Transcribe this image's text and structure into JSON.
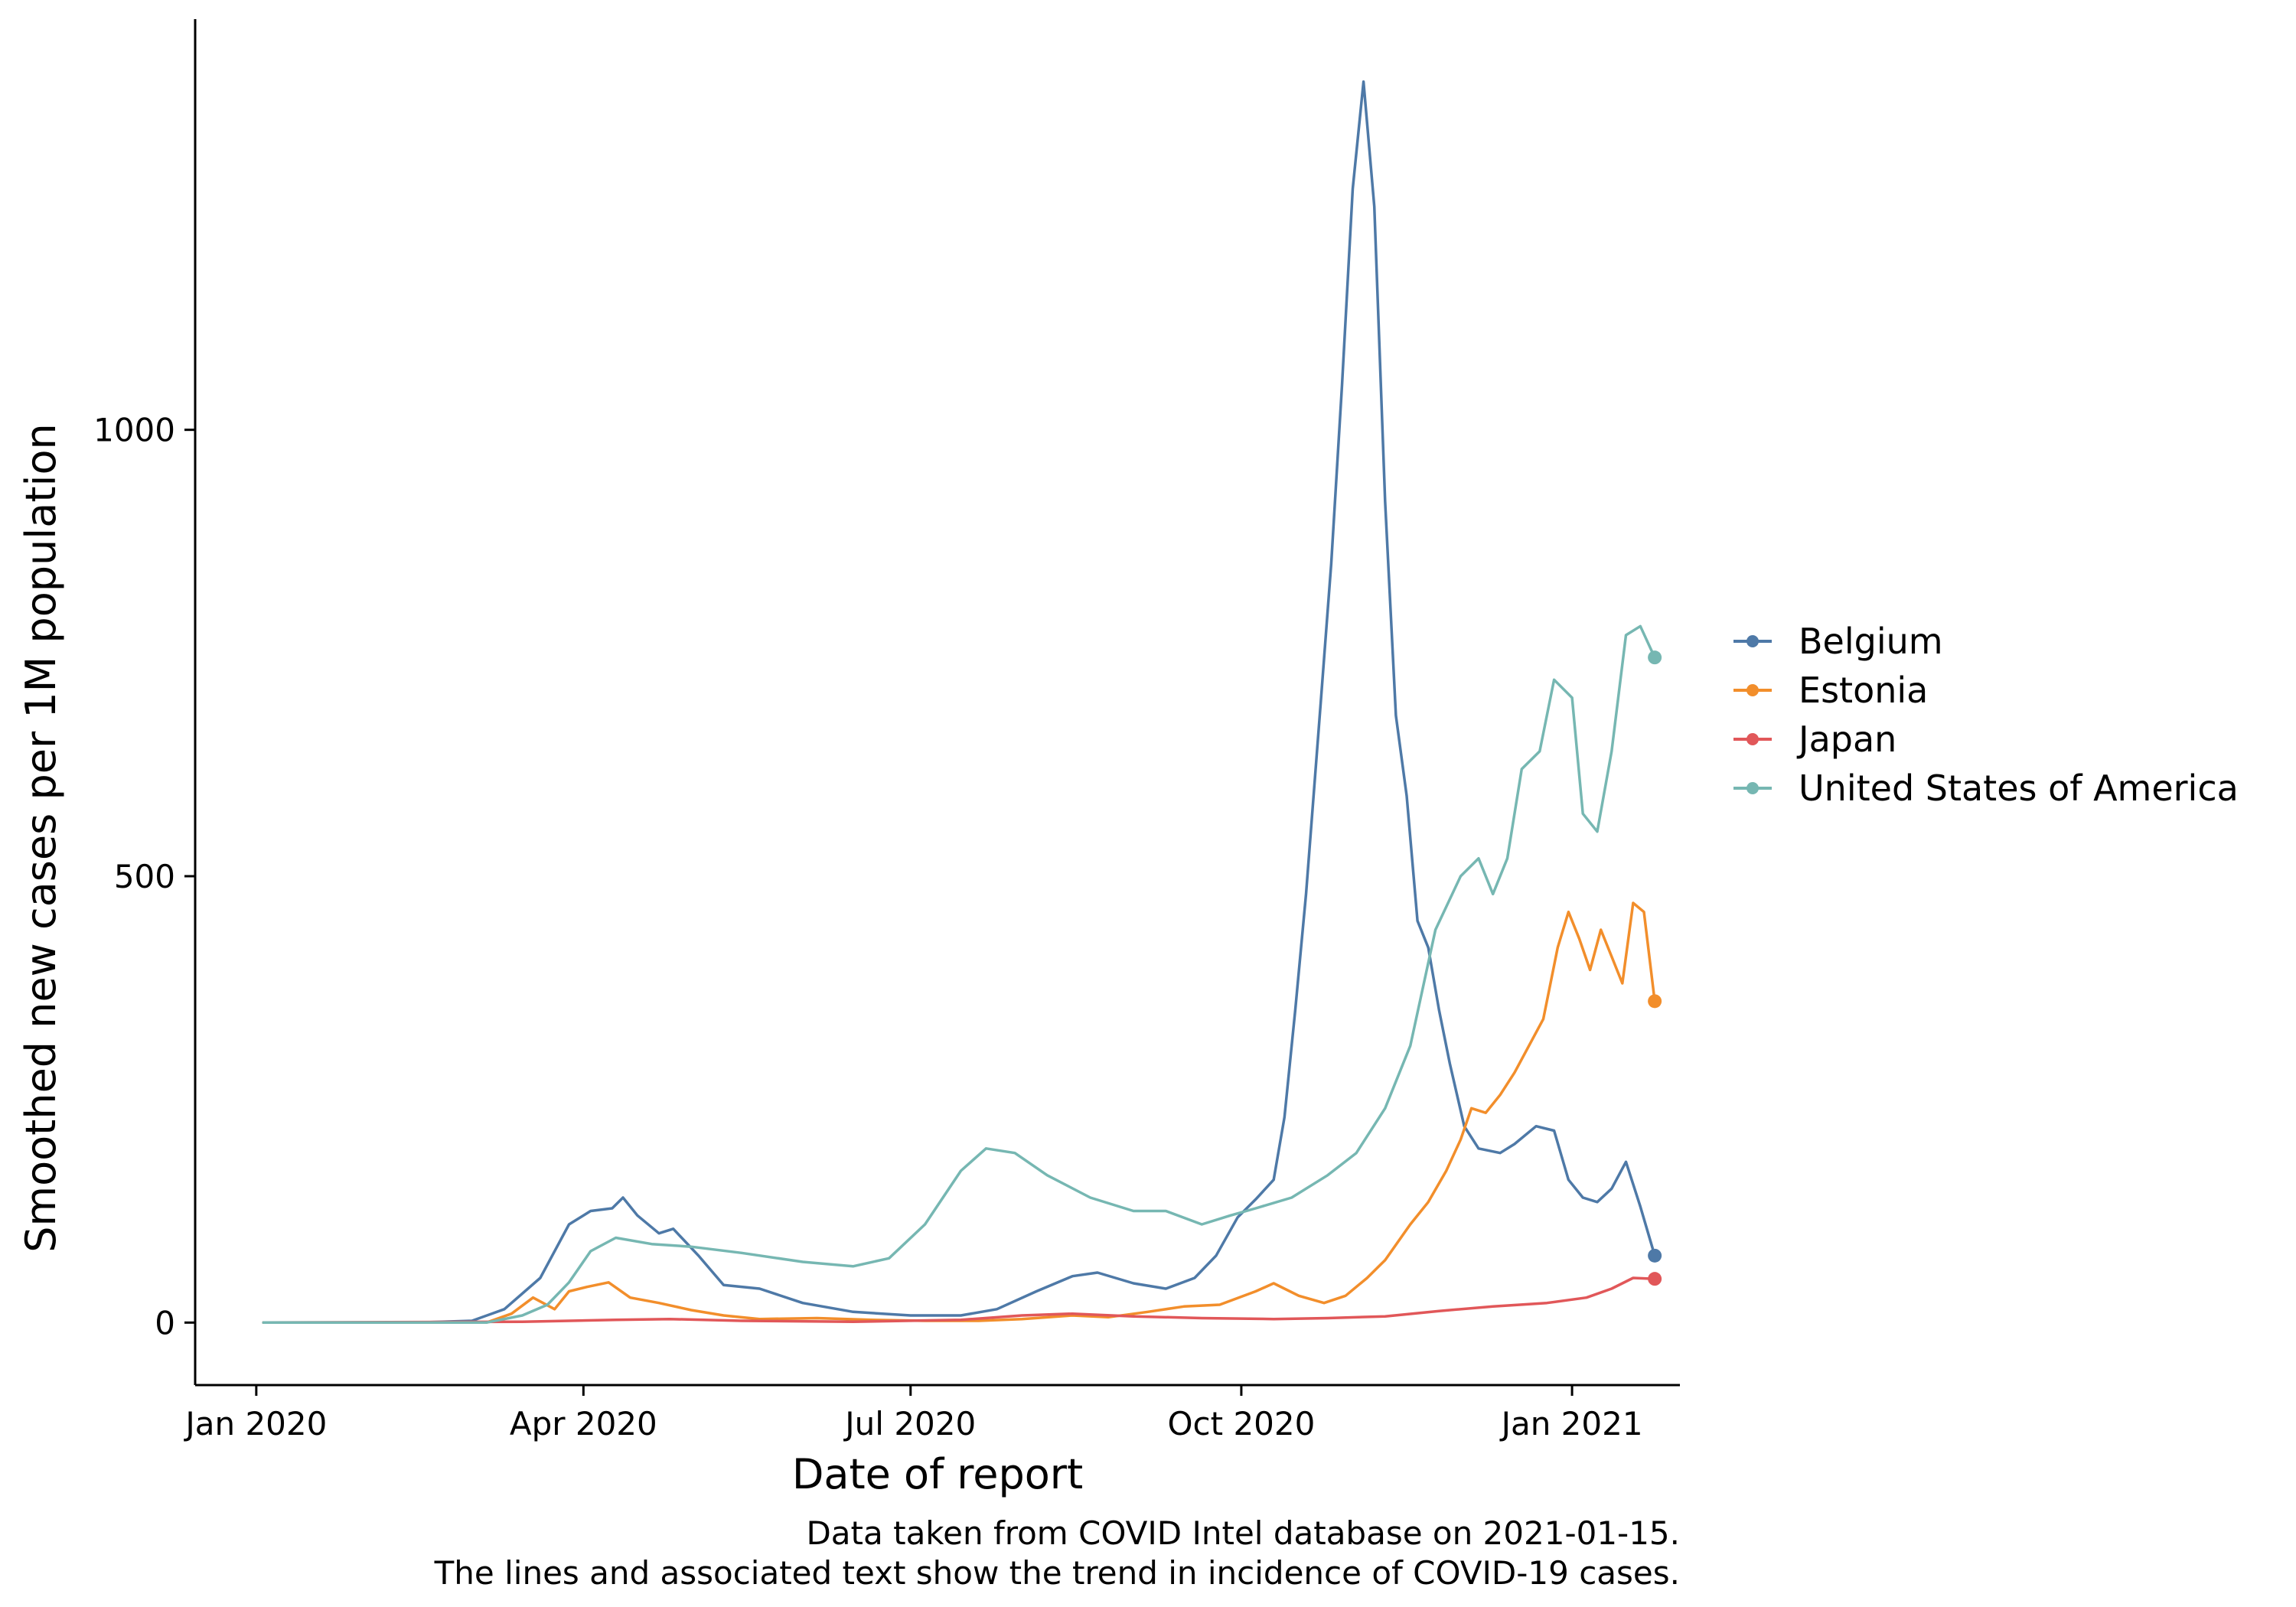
{
  "chart_data": {
    "type": "line",
    "xlabel": "Date of report",
    "ylabel": "Smoothed new cases per 1M population",
    "x_ticks": [
      {
        "date": "2020-01-01",
        "label": "Jan 2020"
      },
      {
        "date": "2020-04-01",
        "label": "Apr 2020"
      },
      {
        "date": "2020-07-01",
        "label": "Jul 2020"
      },
      {
        "date": "2020-10-01",
        "label": "Oct 2020"
      },
      {
        "date": "2021-01-01",
        "label": "Jan 2021"
      }
    ],
    "y_ticks": [
      0,
      500,
      1000
    ],
    "xlim": [
      "2019-12-15",
      "2021-01-31"
    ],
    "ylim": [
      -70,
      1460
    ],
    "legend_position": "right",
    "grid": false,
    "caption": [
      "Data taken from COVID Intel database on 2021-01-15.",
      "The lines and associated text show the trend in incidence of COVID-19 cases."
    ],
    "series": [
      {
        "name": "Belgium",
        "color": "#4e79a7",
        "points": [
          [
            "2020-01-03",
            0
          ],
          [
            "2020-02-15",
            0
          ],
          [
            "2020-03-01",
            2
          ],
          [
            "2020-03-10",
            15
          ],
          [
            "2020-03-20",
            50
          ],
          [
            "2020-03-28",
            110
          ],
          [
            "2020-04-03",
            125
          ],
          [
            "2020-04-09",
            128
          ],
          [
            "2020-04-12",
            140
          ],
          [
            "2020-04-16",
            120
          ],
          [
            "2020-04-22",
            100
          ],
          [
            "2020-04-26",
            105
          ],
          [
            "2020-05-03",
            75
          ],
          [
            "2020-05-10",
            42
          ],
          [
            "2020-05-20",
            38
          ],
          [
            "2020-06-01",
            22
          ],
          [
            "2020-06-15",
            12
          ],
          [
            "2020-07-01",
            8
          ],
          [
            "2020-07-15",
            8
          ],
          [
            "2020-07-25",
            15
          ],
          [
            "2020-08-05",
            35
          ],
          [
            "2020-08-15",
            52
          ],
          [
            "2020-08-22",
            56
          ],
          [
            "2020-09-01",
            44
          ],
          [
            "2020-09-10",
            38
          ],
          [
            "2020-09-18",
            50
          ],
          [
            "2020-09-24",
            75
          ],
          [
            "2020-09-30",
            118
          ],
          [
            "2020-10-05",
            138
          ],
          [
            "2020-10-10",
            160
          ],
          [
            "2020-10-13",
            230
          ],
          [
            "2020-10-16",
            350
          ],
          [
            "2020-10-19",
            480
          ],
          [
            "2020-10-23",
            690
          ],
          [
            "2020-10-26",
            850
          ],
          [
            "2020-10-29",
            1050
          ],
          [
            "2020-11-01",
            1270
          ],
          [
            "2020-11-04",
            1390
          ],
          [
            "2020-11-07",
            1250
          ],
          [
            "2020-11-10",
            920
          ],
          [
            "2020-11-13",
            680
          ],
          [
            "2020-11-16",
            590
          ],
          [
            "2020-11-19",
            450
          ],
          [
            "2020-11-22",
            420
          ],
          [
            "2020-11-25",
            350
          ],
          [
            "2020-11-28",
            290
          ],
          [
            "2020-12-02",
            220
          ],
          [
            "2020-12-06",
            195
          ],
          [
            "2020-12-12",
            190
          ],
          [
            "2020-12-16",
            200
          ],
          [
            "2020-12-22",
            220
          ],
          [
            "2020-12-27",
            215
          ],
          [
            "2020-12-31",
            160
          ],
          [
            "2021-01-04",
            140
          ],
          [
            "2021-01-08",
            135
          ],
          [
            "2021-01-12",
            150
          ],
          [
            "2021-01-16",
            180
          ],
          [
            "2021-01-20",
            130
          ],
          [
            "2021-01-24",
            75
          ]
        ]
      },
      {
        "name": "Estonia",
        "color": "#f28e2b",
        "points": [
          [
            "2020-01-03",
            0
          ],
          [
            "2020-03-05",
            0
          ],
          [
            "2020-03-12",
            10
          ],
          [
            "2020-03-18",
            28
          ],
          [
            "2020-03-24",
            15
          ],
          [
            "2020-03-28",
            35
          ],
          [
            "2020-04-02",
            40
          ],
          [
            "2020-04-08",
            45
          ],
          [
            "2020-04-14",
            28
          ],
          [
            "2020-04-22",
            22
          ],
          [
            "2020-05-01",
            14
          ],
          [
            "2020-05-10",
            8
          ],
          [
            "2020-05-20",
            4
          ],
          [
            "2020-06-05",
            5
          ],
          [
            "2020-06-20",
            3
          ],
          [
            "2020-07-05",
            2
          ],
          [
            "2020-07-20",
            2
          ],
          [
            "2020-08-01",
            4
          ],
          [
            "2020-08-15",
            8
          ],
          [
            "2020-08-25",
            6
          ],
          [
            "2020-09-05",
            12
          ],
          [
            "2020-09-15",
            18
          ],
          [
            "2020-09-25",
            20
          ],
          [
            "2020-10-05",
            35
          ],
          [
            "2020-10-10",
            44
          ],
          [
            "2020-10-17",
            30
          ],
          [
            "2020-10-24",
            22
          ],
          [
            "2020-10-30",
            30
          ],
          [
            "2020-11-05",
            50
          ],
          [
            "2020-11-10",
            70
          ],
          [
            "2020-11-17",
            110
          ],
          [
            "2020-11-22",
            135
          ],
          [
            "2020-11-27",
            170
          ],
          [
            "2020-12-01",
            205
          ],
          [
            "2020-12-04",
            240
          ],
          [
            "2020-12-08",
            235
          ],
          [
            "2020-12-12",
            255
          ],
          [
            "2020-12-16",
            280
          ],
          [
            "2020-12-20",
            310
          ],
          [
            "2020-12-24",
            340
          ],
          [
            "2020-12-28",
            420
          ],
          [
            "2020-12-31",
            460
          ],
          [
            "2021-01-03",
            430
          ],
          [
            "2021-01-06",
            395
          ],
          [
            "2021-01-09",
            440
          ],
          [
            "2021-01-12",
            410
          ],
          [
            "2021-01-15",
            380
          ],
          [
            "2021-01-18",
            470
          ],
          [
            "2021-01-21",
            460
          ],
          [
            "2021-01-24",
            360
          ]
        ]
      },
      {
        "name": "Japan",
        "color": "#e15759",
        "points": [
          [
            "2020-01-03",
            0
          ],
          [
            "2020-03-15",
            1
          ],
          [
            "2020-04-10",
            3
          ],
          [
            "2020-04-25",
            4
          ],
          [
            "2020-05-15",
            2
          ],
          [
            "2020-06-15",
            1
          ],
          [
            "2020-07-15",
            3
          ],
          [
            "2020-08-01",
            8
          ],
          [
            "2020-08-15",
            10
          ],
          [
            "2020-09-01",
            7
          ],
          [
            "2020-09-20",
            5
          ],
          [
            "2020-10-10",
            4
          ],
          [
            "2020-10-25",
            5
          ],
          [
            "2020-11-10",
            7
          ],
          [
            "2020-11-25",
            13
          ],
          [
            "2020-12-10",
            18
          ],
          [
            "2020-12-25",
            22
          ],
          [
            "2021-01-05",
            28
          ],
          [
            "2021-01-12",
            38
          ],
          [
            "2021-01-18",
            50
          ],
          [
            "2021-01-24",
            49
          ]
        ]
      },
      {
        "name": "United States of America",
        "color": "#76b7b2",
        "points": [
          [
            "2020-01-03",
            0
          ],
          [
            "2020-03-05",
            0
          ],
          [
            "2020-03-15",
            8
          ],
          [
            "2020-03-22",
            20
          ],
          [
            "2020-03-28",
            45
          ],
          [
            "2020-04-03",
            80
          ],
          [
            "2020-04-10",
            95
          ],
          [
            "2020-04-20",
            88
          ],
          [
            "2020-05-01",
            85
          ],
          [
            "2020-05-15",
            78
          ],
          [
            "2020-06-01",
            68
          ],
          [
            "2020-06-15",
            63
          ],
          [
            "2020-06-25",
            72
          ],
          [
            "2020-07-05",
            110
          ],
          [
            "2020-07-15",
            170
          ],
          [
            "2020-07-22",
            195
          ],
          [
            "2020-07-30",
            190
          ],
          [
            "2020-08-08",
            165
          ],
          [
            "2020-08-20",
            140
          ],
          [
            "2020-09-01",
            125
          ],
          [
            "2020-09-10",
            125
          ],
          [
            "2020-09-20",
            110
          ],
          [
            "2020-09-28",
            120
          ],
          [
            "2020-10-05",
            128
          ],
          [
            "2020-10-15",
            140
          ],
          [
            "2020-10-25",
            165
          ],
          [
            "2020-11-02",
            190
          ],
          [
            "2020-11-10",
            240
          ],
          [
            "2020-11-17",
            310
          ],
          [
            "2020-11-24",
            440
          ],
          [
            "2020-12-01",
            500
          ],
          [
            "2020-12-06",
            520
          ],
          [
            "2020-12-10",
            480
          ],
          [
            "2020-12-14",
            520
          ],
          [
            "2020-12-18",
            620
          ],
          [
            "2020-12-23",
            640
          ],
          [
            "2020-12-27",
            720
          ],
          [
            "2021-01-01",
            700
          ],
          [
            "2021-01-04",
            570
          ],
          [
            "2021-01-08",
            550
          ],
          [
            "2021-01-12",
            640
          ],
          [
            "2021-01-16",
            770
          ],
          [
            "2021-01-20",
            780
          ],
          [
            "2021-01-24",
            745
          ]
        ]
      }
    ]
  }
}
